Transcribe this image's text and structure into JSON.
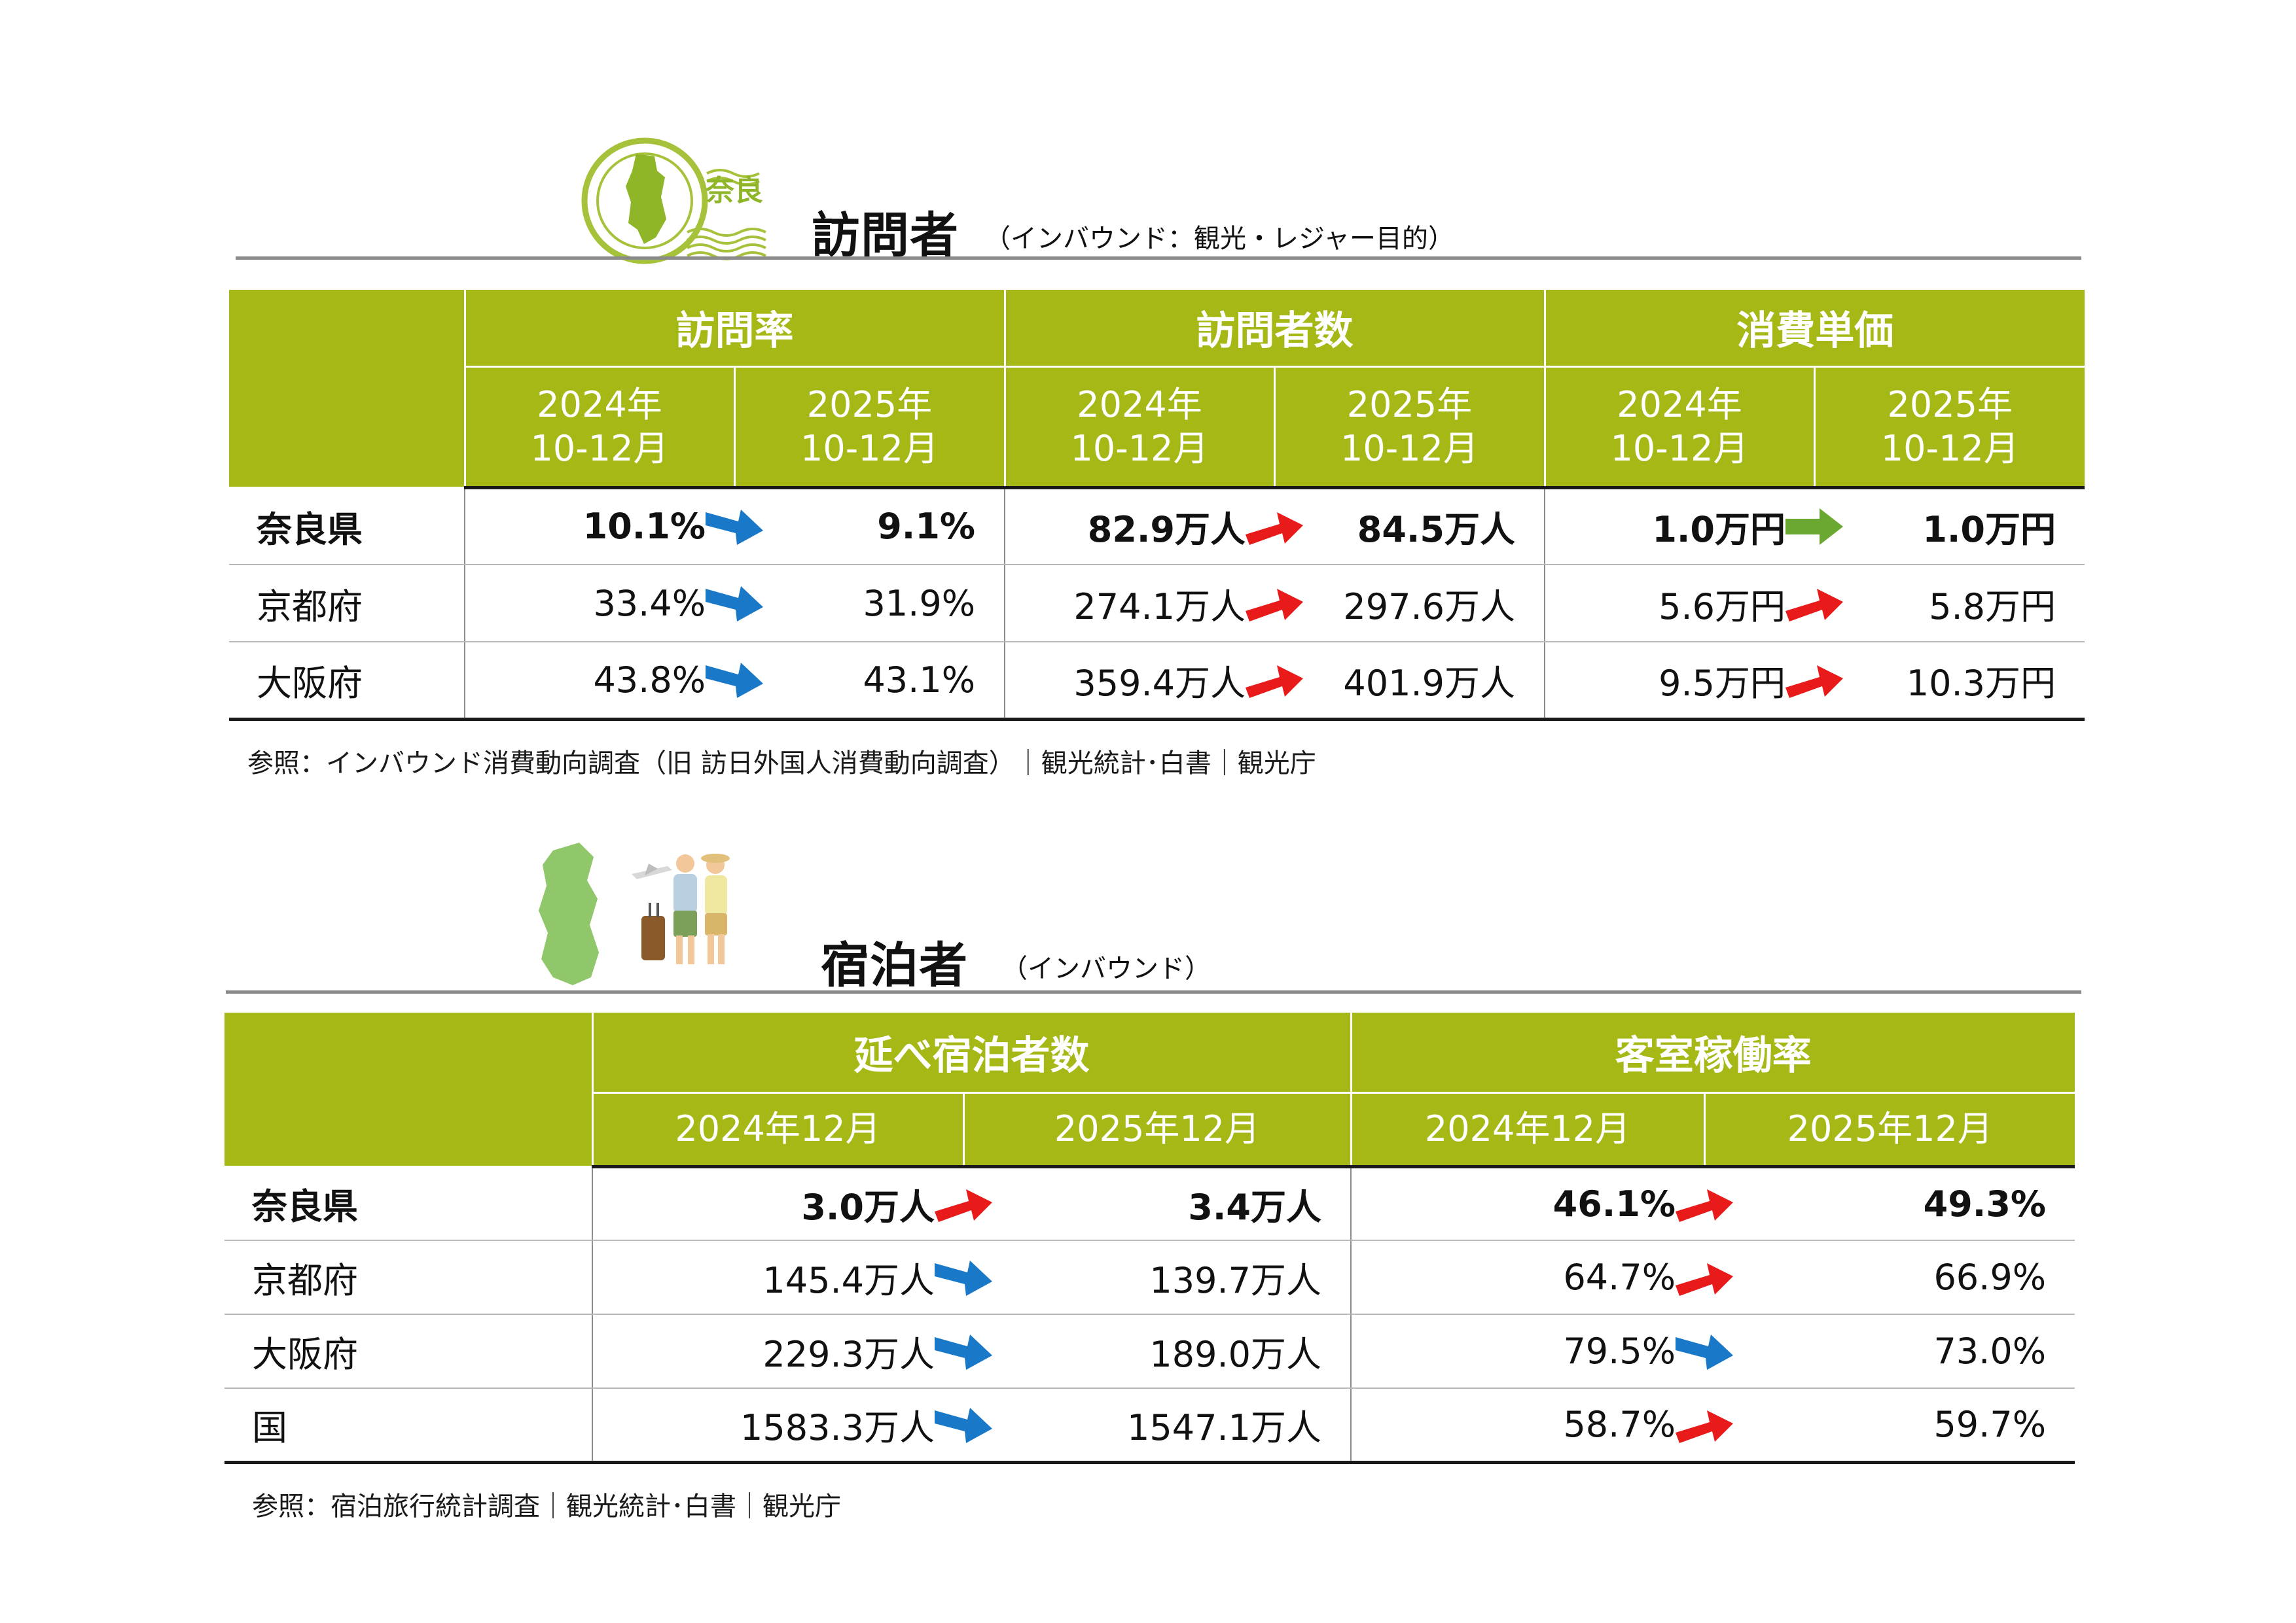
{
  "colors": {
    "header_green": "#a6b815",
    "arrow_up": "#e81a1a",
    "arrow_down": "#1a78c8",
    "arrow_flat": "#6aa832"
  },
  "section1": {
    "stamp_text": "奈良",
    "title": "訪問者",
    "subtitle": "（インバウンド：観光・レジャー目的）",
    "groups": [
      "訪問率",
      "訪問者数",
      "消費単価"
    ],
    "period_year": [
      "2024年",
      "2025年",
      "2024年",
      "2025年",
      "2024年",
      "2025年"
    ],
    "period_month": [
      "10-12月",
      "10-12月",
      "10-12月",
      "10-12月",
      "10-12月",
      "10-12月"
    ],
    "rows": [
      {
        "label": "奈良県",
        "values": [
          "10.1%",
          "9.1%",
          "82.9万人",
          "84.5万人",
          "1.0万円",
          "1.0万円"
        ],
        "trends": [
          "down",
          "up",
          "flat"
        ]
      },
      {
        "label": "京都府",
        "values": [
          "33.4%",
          "31.9%",
          "274.1万人",
          "297.6万人",
          "5.6万円",
          "5.8万円"
        ],
        "trends": [
          "down",
          "up",
          "up"
        ]
      },
      {
        "label": "大阪府",
        "values": [
          "43.8%",
          "43.1%",
          "359.4万人",
          "401.9万人",
          "9.5万円",
          "10.3万円"
        ],
        "trends": [
          "down",
          "up",
          "up"
        ]
      }
    ],
    "note": "参照：インバウンド消費動向調査（旧 訪日外国人消費動向調査）｜観光統計･白書｜観光庁"
  },
  "section2": {
    "title": "宿泊者",
    "subtitle": "（インバウンド）",
    "groups": [
      "延べ宿泊者数",
      "客室稼働率"
    ],
    "periods": [
      "2024年12月",
      "2025年12月",
      "2024年12月",
      "2025年12月"
    ],
    "rows": [
      {
        "label": "奈良県",
        "values": [
          "3.0万人",
          "3.4万人",
          "46.1%",
          "49.3%"
        ],
        "trends": [
          "up",
          "up"
        ]
      },
      {
        "label": "京都府",
        "values": [
          "145.4万人",
          "139.7万人",
          "64.7%",
          "66.9%"
        ],
        "trends": [
          "down",
          "up"
        ]
      },
      {
        "label": "大阪府",
        "values": [
          "229.3万人",
          "189.0万人",
          "79.5%",
          "73.0%"
        ],
        "trends": [
          "down",
          "down"
        ]
      },
      {
        "label": "国",
        "values": [
          "1583.3万人",
          "1547.1万人",
          "58.7%",
          "59.7%"
        ],
        "trends": [
          "down",
          "up"
        ]
      }
    ],
    "note": "参照：宿泊旅行統計調査｜観光統計･白書｜観光庁"
  }
}
